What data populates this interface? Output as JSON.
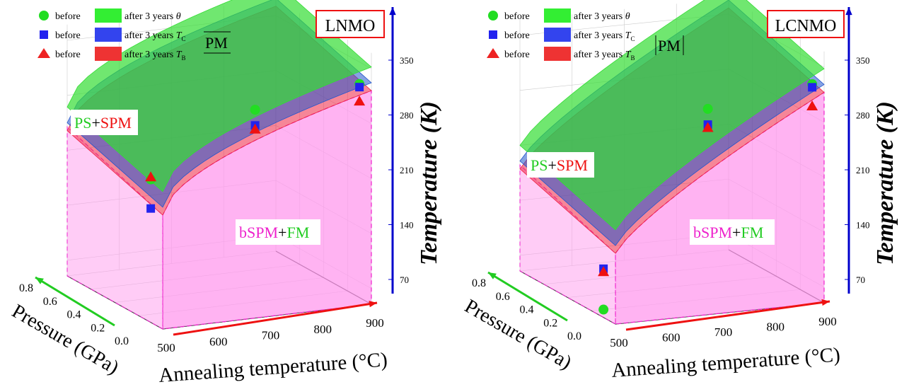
{
  "chart_data": [
    {
      "type": "scatter",
      "title": "LNMO",
      "xlabel": "Annealing temperature (°C)",
      "ylabel": "Pressure (GPa)",
      "zlabel": "Temperature (K)",
      "x_ticks": [
        "500",
        "600",
        "700",
        "800",
        "900"
      ],
      "y_ticks": [
        "0.0",
        "0.2",
        "0.4",
        "0.6",
        "0.8"
      ],
      "z_ticks": [
        "70",
        "140",
        "210",
        "280",
        "350"
      ],
      "xlim": [
        500,
        900
      ],
      "ylim": [
        0,
        0.8
      ],
      "zlim": [
        50,
        370
      ],
      "regions": {
        "pm": "PM",
        "ps_spm": [
          "PS",
          "+",
          "SPM"
        ],
        "bspm_fm": [
          "bSPM",
          "+",
          "FM"
        ]
      },
      "series": [
        {
          "name": "θ",
          "marker": "circle",
          "color": "#22dd22",
          "x": [
            500,
            700,
            900
          ],
          "z": [
            232,
            305,
            322
          ]
        },
        {
          "name": "T_C",
          "marker": "square",
          "color": "#2222ee",
          "x": [
            500,
            700,
            900
          ],
          "z": [
            195,
            285,
            318
          ]
        },
        {
          "name": "T_B",
          "marker": "triangle",
          "color": "#ee1111",
          "x": [
            500,
            700,
            900
          ],
          "z": [
            235,
            280,
            300
          ]
        }
      ]
    },
    {
      "type": "scatter",
      "title": "LCNMO",
      "xlabel": "Annealing temperature (°C)",
      "ylabel": "Pressure (GPa)",
      "zlabel": "Temperature (K)",
      "x_ticks": [
        "500",
        "600",
        "700",
        "800",
        "900"
      ],
      "y_ticks": [
        "0.0",
        "0.2",
        "0.4",
        "0.6",
        "0.8"
      ],
      "z_ticks": [
        "70",
        "140",
        "210",
        "280",
        "350"
      ],
      "xlim": [
        500,
        900
      ],
      "ylim": [
        0,
        0.8
      ],
      "zlim": [
        50,
        370
      ],
      "regions": {
        "pm": "PM",
        "ps_spm": [
          "PS",
          "+",
          "SPM"
        ],
        "bspm_fm": [
          "bSPM",
          "+",
          "FM"
        ]
      },
      "series": [
        {
          "name": "θ",
          "marker": "circle",
          "color": "#22dd22",
          "x": [
            500,
            700,
            900
          ],
          "z": [
            60,
            302,
            320
          ]
        },
        {
          "name": "T_C",
          "marker": "square",
          "color": "#2222ee",
          "x": [
            500,
            700,
            900
          ],
          "z": [
            112,
            282,
            316
          ]
        },
        {
          "name": "T_B",
          "marker": "triangle",
          "color": "#ee1111",
          "x": [
            500,
            700,
            900
          ],
          "z": [
            108,
            278,
            292
          ]
        }
      ]
    }
  ],
  "legend": [
    {
      "before": "before",
      "after": "after 3 years ",
      "symbol": "θ",
      "sub": "",
      "marker": "circle",
      "color": "#22dd22",
      "fill": "#33ee33"
    },
    {
      "before": "before",
      "after": "after 3 years ",
      "symbol": "T",
      "sub": "C",
      "marker": "square",
      "color": "#2222ee",
      "fill": "#3344ee"
    },
    {
      "before": "before",
      "after": "after 3 years ",
      "symbol": "T",
      "sub": "B",
      "marker": "triangle",
      "color": "#ee2222",
      "fill": "#ee3333"
    }
  ],
  "colors": {
    "pink": "#ff99ee",
    "magenta": "#ee22cc",
    "green": "#22cc22",
    "red": "#ee1111",
    "blue": "#0000cc"
  }
}
